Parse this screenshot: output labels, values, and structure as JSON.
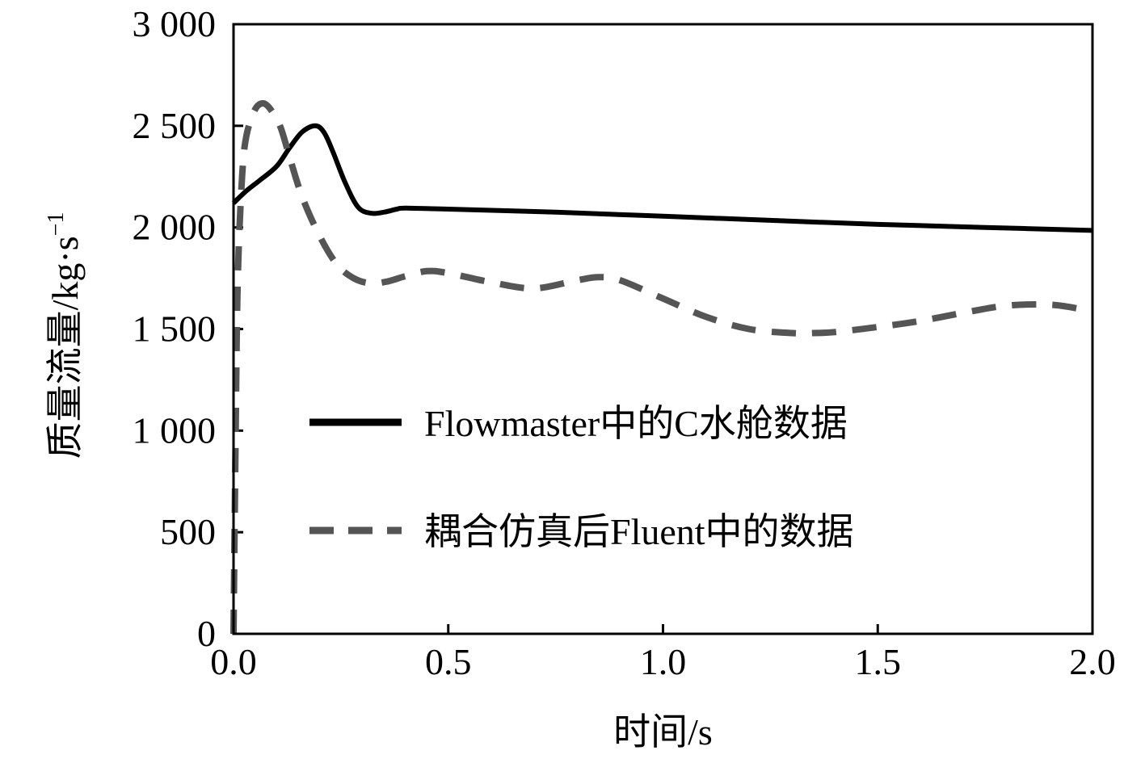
{
  "chart_data": {
    "type": "line",
    "title": "",
    "xlabel": "时间/s",
    "ylabel_main": "质量流量/kg·s",
    "ylabel_sup": "−1",
    "xlim": [
      0,
      2
    ],
    "ylim": [
      0,
      3000
    ],
    "x_ticks": [
      0,
      0.5,
      1,
      1.5,
      2
    ],
    "x_tick_labels": [
      "0.0",
      "0.5",
      "1.0",
      "1.5",
      "2.0"
    ],
    "y_ticks": [
      0,
      500,
      1000,
      1500,
      2000,
      2500,
      3000
    ],
    "y_tick_labels": [
      "0",
      "500",
      "1 000",
      "1 500",
      "2 000",
      "2 500",
      "3 000"
    ],
    "grid": false,
    "legend_position": "center",
    "series": [
      {
        "name": "Flowmaster中的C水舱数据",
        "style": "solid",
        "color": "#000000",
        "x": [
          0,
          0.03,
          0.06,
          0.1,
          0.13,
          0.16,
          0.19,
          0.21,
          0.23,
          0.26,
          0.29,
          0.32,
          0.35,
          0.38,
          0.4,
          0.5,
          0.75,
          1.0,
          1.25,
          1.5,
          1.75,
          2.0
        ],
        "y": [
          2120,
          2180,
          2230,
          2300,
          2390,
          2470,
          2500,
          2470,
          2380,
          2220,
          2100,
          2070,
          2075,
          2090,
          2095,
          2090,
          2075,
          2055,
          2035,
          2015,
          2000,
          1985
        ]
      },
      {
        "name": "耦合仿真后Fluent中的数据",
        "style": "dashed",
        "color": "#555555",
        "x": [
          0,
          0.005,
          0.01,
          0.02,
          0.03,
          0.05,
          0.07,
          0.09,
          0.11,
          0.13,
          0.16,
          0.2,
          0.24,
          0.28,
          0.32,
          0.36,
          0.4,
          0.45,
          0.5,
          0.6,
          0.7,
          0.8,
          0.85,
          0.9,
          1.0,
          1.1,
          1.2,
          1.3,
          1.35,
          1.4,
          1.5,
          1.6,
          1.7,
          1.8,
          1.9,
          1.97
        ],
        "y": [
          0,
          1000,
          1750,
          2250,
          2450,
          2580,
          2610,
          2570,
          2490,
          2350,
          2150,
          1960,
          1820,
          1750,
          1725,
          1735,
          1760,
          1785,
          1775,
          1730,
          1700,
          1740,
          1755,
          1740,
          1650,
          1560,
          1500,
          1480,
          1480,
          1485,
          1510,
          1540,
          1580,
          1615,
          1620,
          1600
        ]
      }
    ]
  },
  "legend": {
    "solid_label": "Flowmaster中的C水舱数据",
    "dashed_label": "耦合仿真后Fluent中的数据"
  }
}
